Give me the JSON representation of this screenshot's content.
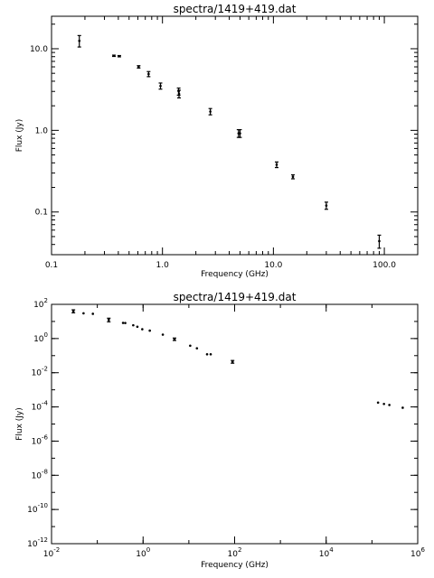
{
  "chart_data": [
    {
      "type": "scatter",
      "title": "spectra/1419+419.dat",
      "xlabel": "Frequency (GHz)",
      "ylabel": "Flux (Jy)",
      "xscale": "log",
      "yscale": "log",
      "xlim": [
        0.1,
        200
      ],
      "ylim": [
        0.03,
        25
      ],
      "xticks": [
        {
          "v": 0.1,
          "label": "0.1"
        },
        {
          "v": 1,
          "label": "1.0"
        },
        {
          "v": 10,
          "label": "10.0"
        },
        {
          "v": 100,
          "label": "100.0"
        }
      ],
      "yticks": [
        {
          "v": 0.1,
          "label": "0.1"
        },
        {
          "v": 1,
          "label": "1.0"
        },
        {
          "v": 10,
          "label": "10.0"
        }
      ],
      "points": [
        {
          "x": 0.178,
          "y": 12.5,
          "err": 2.0
        },
        {
          "x": 0.365,
          "y": 8.2,
          "err": 0.15
        },
        {
          "x": 0.408,
          "y": 8.1,
          "err": 0.15
        },
        {
          "x": 0.61,
          "y": 6.0,
          "err": 0.2
        },
        {
          "x": 0.75,
          "y": 4.9,
          "err": 0.35
        },
        {
          "x": 0.96,
          "y": 3.5,
          "err": 0.3
        },
        {
          "x": 1.4,
          "y": 3.0,
          "err": 0.3
        },
        {
          "x": 1.41,
          "y": 2.8,
          "err": 0.3
        },
        {
          "x": 2.7,
          "y": 1.7,
          "err": 0.15
        },
        {
          "x": 4.85,
          "y": 0.92,
          "err": 0.1
        },
        {
          "x": 5.0,
          "y": 0.92,
          "err": 0.1
        },
        {
          "x": 10.7,
          "y": 0.38,
          "err": 0.03
        },
        {
          "x": 15.0,
          "y": 0.27,
          "err": 0.015
        },
        {
          "x": 30.0,
          "y": 0.12,
          "err": 0.012
        },
        {
          "x": 90.0,
          "y": 0.044,
          "err": 0.008
        }
      ]
    },
    {
      "type": "scatter",
      "title": "spectra/1419+419.dat",
      "xlabel": "Frequency (GHz)",
      "ylabel": "Flux (Jy)",
      "xscale": "log",
      "yscale": "log",
      "xlim": [
        0.01,
        1000000
      ],
      "ylim": [
        1e-12,
        100
      ],
      "xticks": [
        {
          "v": 0.01,
          "base": "10",
          "exp": "-2"
        },
        {
          "v": 1,
          "base": "10",
          "exp": "0"
        },
        {
          "v": 100,
          "base": "10",
          "exp": "2"
        },
        {
          "v": 10000,
          "base": "10",
          "exp": "4"
        },
        {
          "v": 1000000,
          "base": "10",
          "exp": "6"
        }
      ],
      "yticks": [
        {
          "v": 1e-12,
          "base": "10",
          "exp": "-12"
        },
        {
          "v": 1e-10,
          "base": "10",
          "exp": "-10"
        },
        {
          "v": 1e-08,
          "base": "10",
          "exp": "-8"
        },
        {
          "v": 1e-06,
          "base": "10",
          "exp": "-6"
        },
        {
          "v": 0.0001,
          "base": "10",
          "exp": "-4"
        },
        {
          "v": 0.01,
          "base": "10",
          "exp": "-2"
        },
        {
          "v": 1,
          "base": "10",
          "exp": "0"
        },
        {
          "v": 100,
          "base": "10",
          "exp": "2"
        }
      ],
      "points": [
        {
          "x": 0.03,
          "y": 40,
          "err": 8
        },
        {
          "x": 0.05,
          "y": 30,
          "err": 0
        },
        {
          "x": 0.08,
          "y": 28,
          "err": 0
        },
        {
          "x": 0.178,
          "y": 12.5,
          "err": 3
        },
        {
          "x": 0.365,
          "y": 8.2,
          "err": 0
        },
        {
          "x": 0.408,
          "y": 8.1,
          "err": 0
        },
        {
          "x": 0.61,
          "y": 6.0,
          "err": 0
        },
        {
          "x": 0.75,
          "y": 4.9,
          "err": 0
        },
        {
          "x": 0.96,
          "y": 3.5,
          "err": 0
        },
        {
          "x": 1.4,
          "y": 2.9,
          "err": 0
        },
        {
          "x": 2.7,
          "y": 1.7,
          "err": 0
        },
        {
          "x": 4.85,
          "y": 0.92,
          "err": 0.15
        },
        {
          "x": 10.7,
          "y": 0.38,
          "err": 0
        },
        {
          "x": 15.0,
          "y": 0.27,
          "err": 0
        },
        {
          "x": 25.0,
          "y": 0.12,
          "err": 0
        },
        {
          "x": 30.0,
          "y": 0.12,
          "err": 0
        },
        {
          "x": 90.0,
          "y": 0.044,
          "err": 0.008
        },
        {
          "x": 136000,
          "y": 0.00018,
          "err": 0
        },
        {
          "x": 183000,
          "y": 0.00015,
          "err": 0
        },
        {
          "x": 240000,
          "y": 0.00013,
          "err": 0
        },
        {
          "x": 470000,
          "y": 9e-05,
          "err": 0
        }
      ]
    }
  ]
}
